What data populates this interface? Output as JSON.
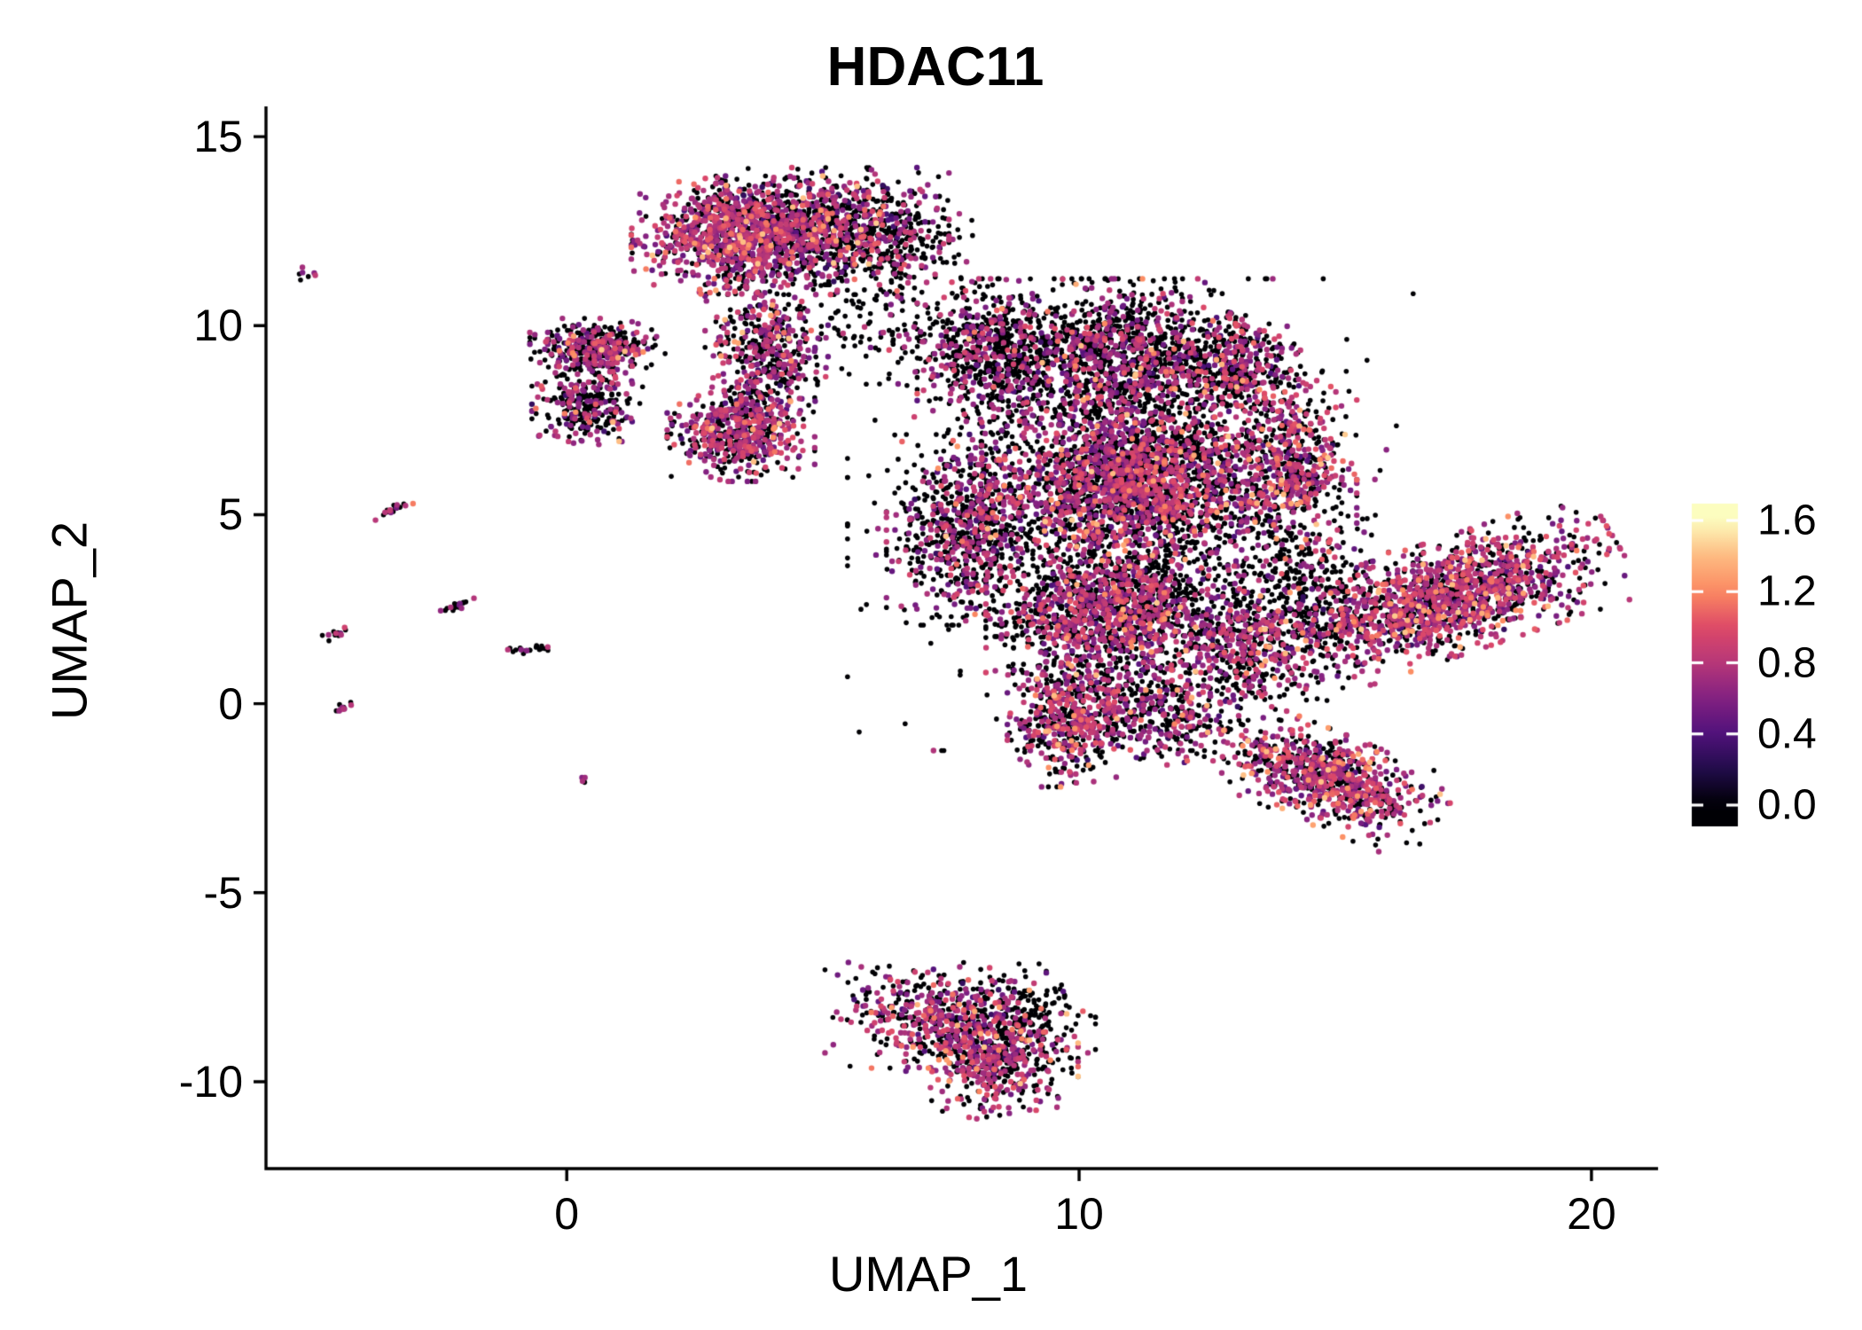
{
  "title": "HDAC11",
  "chart_data": {
    "type": "scatter",
    "title": "HDAC11",
    "xlabel": "UMAP_1",
    "ylabel": "UMAP_2",
    "xlim": [
      -5.87,
      21.3
    ],
    "ylim": [
      -12.3,
      15.8
    ],
    "x_tick_values": [
      0,
      10,
      20
    ],
    "x_tick_labels": [
      "0",
      "10",
      "20"
    ],
    "y_tick_values": [
      -10,
      -5,
      0,
      5,
      10,
      15
    ],
    "y_tick_labels": [
      "-10",
      "-5",
      "0",
      "5",
      "10",
      "15"
    ],
    "grid": false,
    "legend_position": "right",
    "point_radius_zero": 2.8,
    "point_radius_expr": 3.2,
    "seed": 42,
    "colorbar": {
      "vmin": 0.0,
      "vmax": 1.6,
      "colormap": "magma",
      "stops": [
        [
          0.0,
          "#000004"
        ],
        [
          0.125,
          "#210c4a"
        ],
        [
          0.25,
          "#51127c"
        ],
        [
          0.375,
          "#832181"
        ],
        [
          0.5,
          "#b73779"
        ],
        [
          0.625,
          "#de4968"
        ],
        [
          0.75,
          "#fc8961"
        ],
        [
          0.875,
          "#febb81"
        ],
        [
          1.0,
          "#fcfdbf"
        ]
      ],
      "ticks": [
        {
          "value": 1.6,
          "label": "1.6"
        },
        {
          "value": 1.2,
          "label": "1.2"
        },
        {
          "value": 0.8,
          "label": "0.8"
        },
        {
          "value": 0.4,
          "label": "0.4"
        },
        {
          "value": 0.0,
          "label": "0.0"
        }
      ]
    },
    "clusters": [
      {
        "n": 1000,
        "cx": 3.3,
        "cy": 12.4,
        "sx": 0.85,
        "sy": 0.65,
        "rot": 0,
        "p0": 0.32,
        "m": 0.75,
        "sd": 0.18,
        "hot": 0.07
      },
      {
        "n": 900,
        "cx": 5.3,
        "cy": 12.5,
        "sx": 0.9,
        "sy": 0.7,
        "rot": 0,
        "p0": 0.55,
        "m": 0.7,
        "sd": 0.18,
        "hot": 0.05
      },
      {
        "n": 150,
        "cx": 6.6,
        "cy": 12.1,
        "sx": 0.55,
        "sy": 0.65,
        "rot": 0,
        "p0": 0.8,
        "m": 0.7,
        "sd": 0.15,
        "hot": 0.03
      },
      {
        "n": 450,
        "cx": 3.9,
        "cy": 9.4,
        "sx": 0.5,
        "sy": 0.8,
        "rot": 0,
        "p0": 0.5,
        "m": 0.72,
        "sd": 0.18,
        "hot": 0.05
      },
      {
        "n": 400,
        "cx": 0.6,
        "cy": 9.4,
        "sx": 0.55,
        "sy": 0.33,
        "rot": 0,
        "p0": 0.55,
        "m": 0.7,
        "sd": 0.16,
        "hot": 0.04
      },
      {
        "n": 300,
        "cx": 0.4,
        "cy": 7.9,
        "sx": 0.45,
        "sy": 0.45,
        "rot": 0,
        "p0": 0.62,
        "m": 0.68,
        "sd": 0.16,
        "hot": 0.03
      },
      {
        "n": 550,
        "cx": 3.4,
        "cy": 7.2,
        "sx": 0.6,
        "sy": 0.55,
        "rot": 0,
        "p0": 0.4,
        "m": 0.74,
        "sd": 0.17,
        "hot": 0.05
      },
      {
        "n": 120,
        "cx": 6.3,
        "cy": 9.9,
        "sx": 0.8,
        "sy": 0.6,
        "rot": 0,
        "p0": 0.85,
        "m": 0.65,
        "sd": 0.15,
        "hot": 0
      },
      {
        "n": 700,
        "cx": 8.4,
        "cy": 9.2,
        "sx": 0.65,
        "sy": 0.85,
        "rot": 0,
        "p0": 0.7,
        "m": 0.7,
        "sd": 0.17,
        "hot": 0.04
      },
      {
        "n": 1100,
        "cx": 10.9,
        "cy": 9.2,
        "sx": 0.95,
        "sy": 0.85,
        "rot": 0,
        "p0": 0.65,
        "m": 0.7,
        "sd": 0.17,
        "hot": 0.05
      },
      {
        "n": 400,
        "cx": 13.0,
        "cy": 8.9,
        "sx": 0.55,
        "sy": 0.6,
        "rot": 0,
        "p0": 0.6,
        "m": 0.72,
        "sd": 0.17,
        "hot": 0.05
      },
      {
        "n": 600,
        "cx": 14.1,
        "cy": 6.3,
        "sx": 0.55,
        "sy": 1.05,
        "rot": 0,
        "p0": 0.45,
        "m": 0.75,
        "sd": 0.18,
        "hot": 0.08
      },
      {
        "n": 2300,
        "cx": 11.1,
        "cy": 5.9,
        "sx": 1.25,
        "sy": 1.05,
        "rot": 0,
        "p0": 0.5,
        "m": 0.73,
        "sd": 0.18,
        "hot": 0.06
      },
      {
        "n": 700,
        "cx": 7.8,
        "cy": 4.6,
        "sx": 0.65,
        "sy": 1.05,
        "rot": 0,
        "p0": 0.6,
        "m": 0.7,
        "sd": 0.17,
        "hot": 0.05
      },
      {
        "n": 1300,
        "cx": 10.7,
        "cy": 2.4,
        "sx": 1.05,
        "sy": 0.85,
        "rot": 0,
        "p0": 0.5,
        "m": 0.73,
        "sd": 0.18,
        "hot": 0.06
      },
      {
        "n": 500,
        "cx": 9.8,
        "cy": -0.4,
        "sx": 0.5,
        "sy": 0.75,
        "rot": 0,
        "p0": 0.45,
        "m": 0.75,
        "sd": 0.18,
        "hot": 0.08
      },
      {
        "n": 350,
        "cx": 11.6,
        "cy": -0.3,
        "sx": 0.65,
        "sy": 0.55,
        "rot": 0,
        "p0": 0.6,
        "m": 0.7,
        "sd": 0.16,
        "hot": 0.05
      },
      {
        "n": 450,
        "cx": 13.2,
        "cy": 1.6,
        "sx": 0.55,
        "sy": 0.85,
        "rot": 0,
        "p0": 0.55,
        "m": 0.72,
        "sd": 0.17,
        "hot": 0.06
      },
      {
        "n": 300,
        "cx": 14.6,
        "cy": 3.0,
        "sx": 0.6,
        "sy": 1.1,
        "rot": 0,
        "p0": 0.8,
        "m": 0.68,
        "sd": 0.15,
        "hot": 0.03
      },
      {
        "n": 800,
        "cx": 11.0,
        "cy": 5.0,
        "sx": 2.3,
        "sy": 2.6,
        "rot": 0,
        "p0": 0.85,
        "m": 0.68,
        "sd": 0.16,
        "hot": 0.03
      },
      {
        "n": 1500,
        "cx": 17.2,
        "cy": 2.8,
        "sx": 1.5,
        "sy": 0.62,
        "rot": 0.42,
        "p0": 0.35,
        "m": 0.76,
        "sd": 0.18,
        "hot": 0.08
      },
      {
        "n": 800,
        "cx": 14.85,
        "cy": -2.0,
        "sx": 1.0,
        "sy": 0.5,
        "rot": -0.5,
        "p0": 0.4,
        "m": 0.76,
        "sd": 0.18,
        "hot": 0.09
      },
      {
        "n": 450,
        "cx": 7.2,
        "cy": -8.2,
        "sx": 0.9,
        "sy": 0.6,
        "rot": 0,
        "p0": 0.5,
        "m": 0.73,
        "sd": 0.18,
        "hot": 0.07
      },
      {
        "n": 550,
        "cx": 8.3,
        "cy": -9.3,
        "sx": 0.7,
        "sy": 0.7,
        "rot": 0,
        "p0": 0.42,
        "m": 0.75,
        "sd": 0.18,
        "hot": 0.09
      },
      {
        "n": 120,
        "cx": 9.0,
        "cy": -8.2,
        "sx": 0.55,
        "sy": 0.55,
        "rot": 0,
        "p0": 0.88,
        "m": 0.65,
        "sd": 0.15,
        "hot": 0
      },
      {
        "n": 7,
        "cx": -5.1,
        "cy": 11.4,
        "sx": 0.08,
        "sy": 0.08,
        "rot": 0,
        "p0": 0.3,
        "m": 0.7,
        "sd": 0.12,
        "hot": 0
      },
      {
        "n": 22,
        "cx": -3.35,
        "cy": 5.15,
        "sx": 0.2,
        "sy": 0.05,
        "rot": 0.55,
        "p0": 0.55,
        "m": 0.75,
        "sd": 0.15,
        "hot": 0.15
      },
      {
        "n": 18,
        "cx": -2.1,
        "cy": 2.6,
        "sx": 0.16,
        "sy": 0.05,
        "rot": 0.5,
        "p0": 0.85,
        "m": 0.7,
        "sd": 0.1,
        "hot": 0
      },
      {
        "n": 14,
        "cx": -4.5,
        "cy": 1.85,
        "sx": 0.13,
        "sy": 0.05,
        "rot": 0.4,
        "p0": 0.55,
        "m": 0.72,
        "sd": 0.12,
        "hot": 0
      },
      {
        "n": 22,
        "cx": -0.75,
        "cy": 1.45,
        "sx": 0.24,
        "sy": 0.05,
        "rot": 0.1,
        "p0": 0.9,
        "m": 0.7,
        "sd": 0.1,
        "hot": 0
      },
      {
        "n": 10,
        "cx": -4.4,
        "cy": -0.1,
        "sx": 0.09,
        "sy": 0.06,
        "rot": 0.3,
        "p0": 0.5,
        "m": 0.7,
        "sd": 0.12,
        "hot": 0
      },
      {
        "n": 5,
        "cx": 0.3,
        "cy": -2.05,
        "sx": 0.06,
        "sy": 0.05,
        "rot": 0,
        "p0": 0.7,
        "m": 0.65,
        "sd": 0.1,
        "hot": 0
      }
    ]
  }
}
